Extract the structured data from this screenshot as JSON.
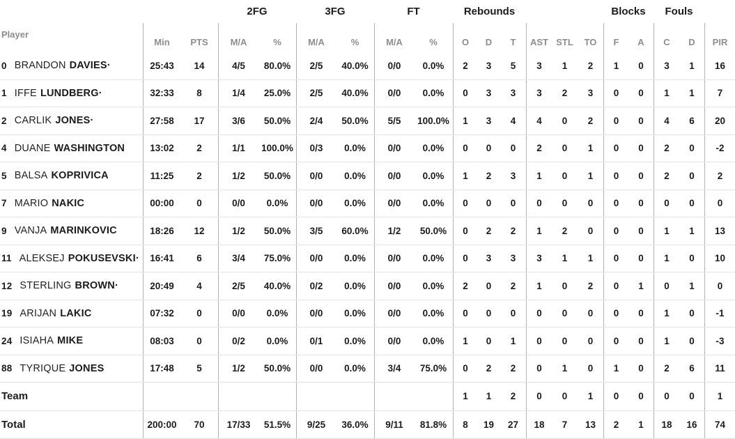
{
  "colors": {
    "text": "#1b1b1b",
    "muted_header": "#8d8d8d",
    "horizontal_line": "#e3e3e3",
    "vertical_line": "#b3b3b3"
  },
  "table": {
    "groups": {
      "fg2": "2FG",
      "fg3": "3FG",
      "ft": "FT",
      "rebounds": "Rebounds",
      "blocks": "Blocks",
      "fouls": "Fouls"
    },
    "headers": {
      "player": "Player",
      "min": "Min",
      "pts": "PTS",
      "fg2_ma": "M/A",
      "fg2_pct": "%",
      "fg3_ma": "M/A",
      "fg3_pct": "%",
      "ft_ma": "M/A",
      "ft_pct": "%",
      "reb_o": "O",
      "reb_d": "D",
      "reb_t": "T",
      "ast": "AST",
      "stl": "STL",
      "to": "TO",
      "blk_f": "F",
      "blk_a": "A",
      "foul_c": "C",
      "foul_d": "D",
      "pir": "PIR"
    },
    "starter_mark": "·",
    "players": [
      {
        "number": "0",
        "first": "BRANDON",
        "last": "DAVIES",
        "starter": true,
        "stats": [
          "25:43",
          "14",
          "4/5",
          "80.0%",
          "2/5",
          "40.0%",
          "0/0",
          "0.0%",
          "2",
          "3",
          "5",
          "3",
          "1",
          "2",
          "1",
          "0",
          "3",
          "1",
          "16"
        ]
      },
      {
        "number": "1",
        "first": "IFFE",
        "last": "LUNDBERG",
        "starter": true,
        "stats": [
          "32:33",
          "8",
          "1/4",
          "25.0%",
          "2/5",
          "40.0%",
          "0/0",
          "0.0%",
          "0",
          "3",
          "3",
          "3",
          "2",
          "3",
          "0",
          "0",
          "1",
          "1",
          "7"
        ]
      },
      {
        "number": "2",
        "first": "CARLIK",
        "last": "JONES",
        "starter": true,
        "stats": [
          "27:58",
          "17",
          "3/6",
          "50.0%",
          "2/4",
          "50.0%",
          "5/5",
          "100.0%",
          "1",
          "3",
          "4",
          "4",
          "0",
          "2",
          "0",
          "0",
          "4",
          "6",
          "20"
        ]
      },
      {
        "number": "4",
        "first": "DUANE",
        "last": "WASHINGTON",
        "starter": false,
        "stats": [
          "13:02",
          "2",
          "1/1",
          "100.0%",
          "0/3",
          "0.0%",
          "0/0",
          "0.0%",
          "0",
          "0",
          "0",
          "2",
          "0",
          "1",
          "0",
          "0",
          "2",
          "0",
          "-2"
        ]
      },
      {
        "number": "5",
        "first": "BALSA",
        "last": "KOPRIVICA",
        "starter": false,
        "stats": [
          "11:25",
          "2",
          "1/2",
          "50.0%",
          "0/0",
          "0.0%",
          "0/0",
          "0.0%",
          "1",
          "2",
          "3",
          "1",
          "0",
          "1",
          "0",
          "0",
          "2",
          "0",
          "2"
        ]
      },
      {
        "number": "7",
        "first": "MARIO",
        "last": "NAKIC",
        "starter": false,
        "stats": [
          "00:00",
          "0",
          "0/0",
          "0.0%",
          "0/0",
          "0.0%",
          "0/0",
          "0.0%",
          "0",
          "0",
          "0",
          "0",
          "0",
          "0",
          "0",
          "0",
          "0",
          "0",
          "0"
        ]
      },
      {
        "number": "9",
        "first": "VANJA",
        "last": "MARINKOVIC",
        "starter": false,
        "stats": [
          "18:26",
          "12",
          "1/2",
          "50.0%",
          "3/5",
          "60.0%",
          "1/2",
          "50.0%",
          "0",
          "2",
          "2",
          "1",
          "2",
          "0",
          "0",
          "0",
          "1",
          "1",
          "13"
        ]
      },
      {
        "number": "11",
        "first": "ALEKSEJ",
        "last": "POKUSEVSKI",
        "starter": true,
        "stats": [
          "16:41",
          "6",
          "3/4",
          "75.0%",
          "0/0",
          "0.0%",
          "0/0",
          "0.0%",
          "0",
          "3",
          "3",
          "3",
          "1",
          "1",
          "0",
          "0",
          "1",
          "0",
          "10"
        ]
      },
      {
        "number": "12",
        "first": "STERLING",
        "last": "BROWN",
        "starter": true,
        "stats": [
          "20:49",
          "4",
          "2/5",
          "40.0%",
          "0/2",
          "0.0%",
          "0/0",
          "0.0%",
          "2",
          "0",
          "2",
          "1",
          "0",
          "2",
          "0",
          "1",
          "0",
          "1",
          "0"
        ]
      },
      {
        "number": "19",
        "first": "ARIJAN",
        "last": "LAKIC",
        "starter": false,
        "stats": [
          "07:32",
          "0",
          "0/0",
          "0.0%",
          "0/0",
          "0.0%",
          "0/0",
          "0.0%",
          "0",
          "0",
          "0",
          "0",
          "0",
          "0",
          "0",
          "0",
          "1",
          "0",
          "-1"
        ]
      },
      {
        "number": "24",
        "first": "ISIAHA",
        "last": "MIKE",
        "starter": false,
        "stats": [
          "08:03",
          "0",
          "0/2",
          "0.0%",
          "0/1",
          "0.0%",
          "0/0",
          "0.0%",
          "1",
          "0",
          "1",
          "0",
          "0",
          "0",
          "0",
          "0",
          "1",
          "0",
          "-3"
        ]
      },
      {
        "number": "88",
        "first": "TYRIQUE",
        "last": "JONES",
        "starter": false,
        "stats": [
          "17:48",
          "5",
          "1/2",
          "50.0%",
          "0/0",
          "0.0%",
          "3/4",
          "75.0%",
          "0",
          "2",
          "2",
          "0",
          "1",
          "0",
          "1",
          "0",
          "2",
          "6",
          "11"
        ]
      }
    ],
    "team": {
      "label": "Team",
      "stats": [
        "",
        "",
        "",
        "",
        "",
        "",
        "",
        "",
        "1",
        "1",
        "2",
        "0",
        "0",
        "1",
        "0",
        "0",
        "0",
        "0",
        "1"
      ]
    },
    "total": {
      "label": "Total",
      "stats": [
        "200:00",
        "70",
        "17/33",
        "51.5%",
        "9/25",
        "36.0%",
        "9/11",
        "81.8%",
        "8",
        "19",
        "27",
        "18",
        "7",
        "13",
        "2",
        "1",
        "18",
        "16",
        "74"
      ]
    }
  }
}
